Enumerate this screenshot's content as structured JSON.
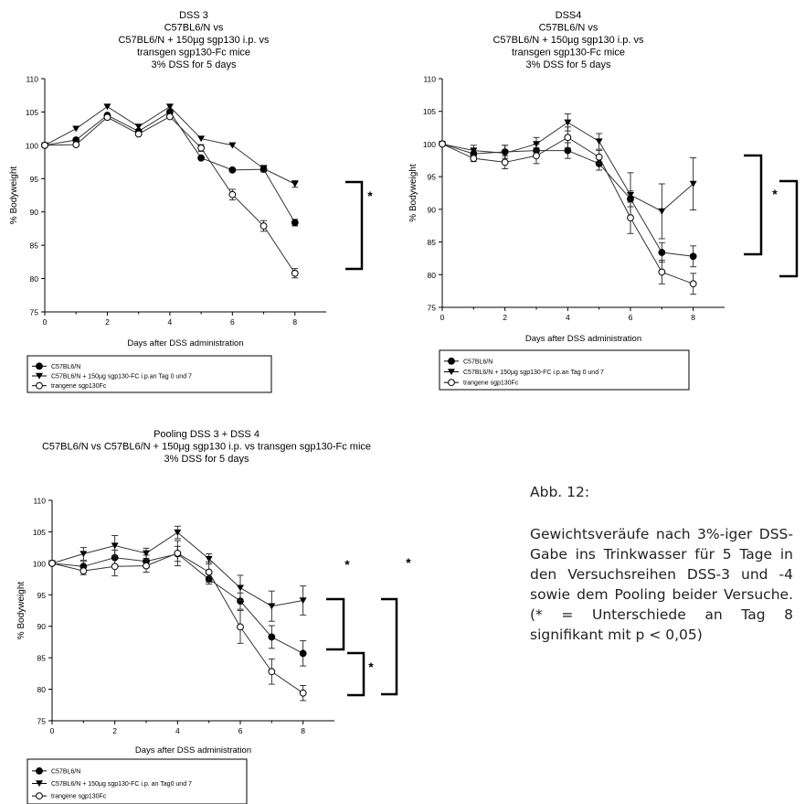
{
  "caption": {
    "title": "Abb. 12:",
    "text": "Gewichtsveräufe nach 3%-iger DSS-Gabe ins Trinkwasser für 5 Tage in den Versuchsreihen DSS-3 und -4 sowie dem Pooling beider Versuche. (* = Unterschiede an Tag 8 signifikant mit p < 0,05)"
  },
  "chart_data": [
    {
      "type": "line",
      "title_lines": [
        "DSS 3",
        "C57BL6/N vs",
        "C57BL6/N + 150µg sgp130 i.p. vs",
        "transgen sgp130-Fc mice",
        "3% DSS for 5 days"
      ],
      "xlabel": "Days after DSS administration",
      "ylabel": "% Bodyweight",
      "xlim": [
        0,
        9
      ],
      "ylim": [
        75,
        110
      ],
      "xticks": [
        0,
        2,
        4,
        6,
        8
      ],
      "yticks": [
        75,
        80,
        85,
        90,
        95,
        100,
        105,
        110
      ],
      "grid": false,
      "legend_position": "below",
      "significance": [
        "*"
      ],
      "series": [
        {
          "name": "C57BL6/N",
          "marker": "filled-circle",
          "x": [
            0,
            1,
            2,
            3,
            4,
            5,
            6,
            7,
            8
          ],
          "y": [
            100,
            100.8,
            104.5,
            102.1,
            105.0,
            98.1,
            96.3,
            96.4,
            88.4
          ],
          "err": [
            0,
            0,
            0,
            0,
            0,
            0,
            0,
            0,
            0.5
          ]
        },
        {
          "name": "C57BL6/N + 150µg sgp130-FC i.p.an Tag 0 und 7",
          "marker": "filled-triangle-down",
          "x": [
            0,
            1,
            2,
            3,
            4,
            5,
            6,
            7,
            8
          ],
          "y": [
            100,
            102.5,
            105.8,
            102.8,
            105.8,
            101.0,
            100.0,
            96.5,
            94.2
          ],
          "err": [
            0,
            0,
            0,
            0,
            0,
            0,
            0,
            0.5,
            0.5
          ]
        },
        {
          "name": "trangene sgp130Fc",
          "marker": "open-circle",
          "x": [
            0,
            1,
            2,
            3,
            4,
            5,
            6,
            7,
            8
          ],
          "y": [
            100,
            100.1,
            104.2,
            101.7,
            104.3,
            99.6,
            92.6,
            87.9,
            80.8
          ],
          "err": [
            0,
            0,
            0,
            0,
            0,
            0.5,
            0.8,
            0.8,
            0.7
          ]
        }
      ]
    },
    {
      "type": "line",
      "title_lines": [
        "DSS4",
        "C57BL6/N vs",
        "C57BL6/N + 150µg sgp130 i.p. vs",
        "transgen sgp130-Fc mice",
        "3% DSS for 5 days"
      ],
      "xlabel": "Days after DSS administration",
      "ylabel": "% Bodyweight",
      "xlim": [
        0,
        9
      ],
      "ylim": [
        75,
        110
      ],
      "xticks": [
        0,
        2,
        4,
        6,
        8
      ],
      "yticks": [
        75,
        80,
        85,
        90,
        95,
        100,
        105,
        110
      ],
      "grid": false,
      "legend_position": "below",
      "significance": [
        "*",
        "*"
      ],
      "series": [
        {
          "name": "C57BL6/N",
          "marker": "filled-circle",
          "x": [
            0,
            1,
            2,
            3,
            4,
            5,
            6,
            7,
            8
          ],
          "y": [
            100,
            98.5,
            98.8,
            99.0,
            99.0,
            97.0,
            91.6,
            83.4,
            82.8
          ],
          "err": [
            0,
            0.8,
            1.0,
            1.0,
            1.2,
            1.0,
            1.2,
            1.5,
            1.6
          ]
        },
        {
          "name": "C57BL6/N + 150µg sgp130-FC i.p.an Tag 0 und 7",
          "marker": "filled-triangle-down",
          "x": [
            0,
            1,
            2,
            3,
            4,
            5,
            6,
            7,
            8
          ],
          "y": [
            100,
            99.0,
            98.6,
            100.0,
            103.3,
            100.4,
            92.2,
            89.7,
            93.9
          ],
          "err": [
            0,
            0.8,
            1.2,
            1.0,
            1.3,
            1.2,
            3.4,
            4.2,
            4.0
          ]
        },
        {
          "name": "trangene sgp130Fc",
          "marker": "open-circle",
          "x": [
            0,
            1,
            2,
            3,
            4,
            5,
            6,
            7,
            8
          ],
          "y": [
            100,
            97.8,
            97.2,
            98.2,
            101.0,
            98.0,
            88.7,
            80.4,
            78.6
          ],
          "err": [
            0,
            0.5,
            1.0,
            1.2,
            1.6,
            1.0,
            2.4,
            1.8,
            1.6
          ]
        }
      ]
    },
    {
      "type": "line",
      "title_lines": [
        "Pooling DSS 3 + DSS 4",
        "C57BL6/N vs C57BL6/N + 150µg sgp130 i.p. vs transgen sgp130-Fc mice",
        "3% DSS for 5 days"
      ],
      "xlabel": "Days after DSS administration",
      "ylabel": "% Bodyweight",
      "xlim": [
        0,
        9
      ],
      "ylim": [
        75,
        110
      ],
      "xticks": [
        0,
        2,
        4,
        6,
        8
      ],
      "yticks": [
        75,
        80,
        85,
        90,
        95,
        100,
        105,
        110
      ],
      "grid": false,
      "legend_position": "below",
      "significance": [
        "*",
        "*",
        "*"
      ],
      "series": [
        {
          "name": "C57BL6/N",
          "marker": "filled-circle",
          "x": [
            0,
            1,
            2,
            3,
            4,
            5,
            6,
            7,
            8
          ],
          "y": [
            100,
            99.5,
            100.9,
            100.3,
            101.5,
            97.5,
            94.0,
            88.3,
            85.7
          ],
          "err": [
            0,
            0.8,
            1.2,
            1.0,
            1.2,
            0.8,
            1.3,
            1.8,
            2.0
          ]
        },
        {
          "name": "C57BL6/N + 150µg sgp130-FC i.p. an Tag0 und 7",
          "marker": "filled-triangle-down",
          "x": [
            0,
            1,
            2,
            3,
            4,
            5,
            6,
            7,
            8
          ],
          "y": [
            100,
            101.5,
            102.8,
            101.6,
            104.9,
            100.7,
            96.1,
            93.2,
            94.1
          ],
          "err": [
            0,
            1.0,
            1.6,
            0.8,
            1.0,
            0.8,
            2.0,
            2.4,
            2.3
          ]
        },
        {
          "name": "trangene sgp130Fc",
          "marker": "open-circle",
          "x": [
            0,
            1,
            2,
            3,
            4,
            5,
            6,
            7,
            8
          ],
          "y": [
            100,
            98.8,
            99.5,
            99.6,
            101.6,
            98.6,
            89.9,
            82.8,
            79.4
          ],
          "err": [
            0,
            0.6,
            1.5,
            1.0,
            2.0,
            1.6,
            2.6,
            2.0,
            1.2
          ]
        }
      ]
    }
  ]
}
